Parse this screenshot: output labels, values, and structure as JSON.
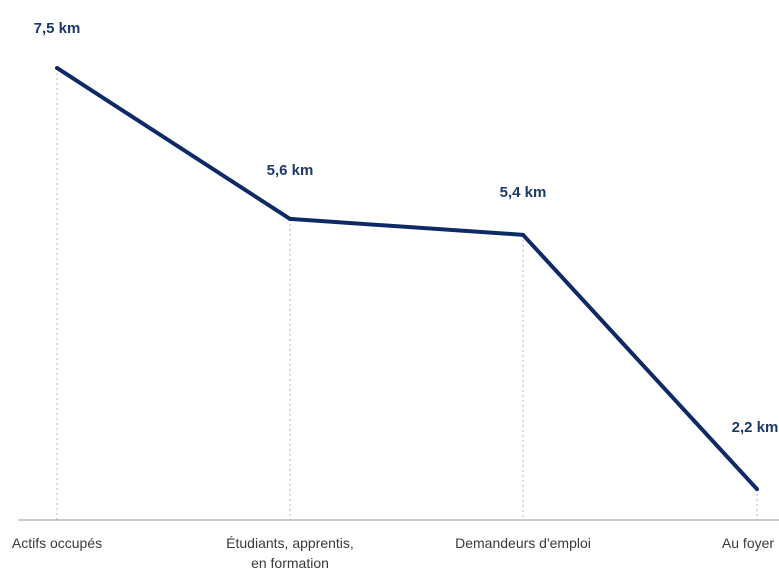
{
  "chart_data": {
    "type": "line",
    "categories": [
      [
        "Actifs occupés"
      ],
      [
        "Étudiants, apprentis,",
        "en formation"
      ],
      [
        "Demandeurs d'emploi"
      ],
      [
        "Au foyer"
      ]
    ],
    "series": [
      {
        "values": [
          7.5,
          5.6,
          5.4,
          2.2
        ]
      }
    ],
    "data_labels": [
      "7,5 km",
      "5,6 km",
      "5,4 km",
      "2,2 km"
    ],
    "unit": "km",
    "ylim": [
      2.0,
      7.6
    ],
    "grid": false,
    "legend": "none",
    "colors": {
      "line": "#0e2a66",
      "label": "#1b3a6b",
      "axis": "#999999",
      "guide": "#b5b5b5",
      "tick_text": "#3a3a3a"
    }
  }
}
